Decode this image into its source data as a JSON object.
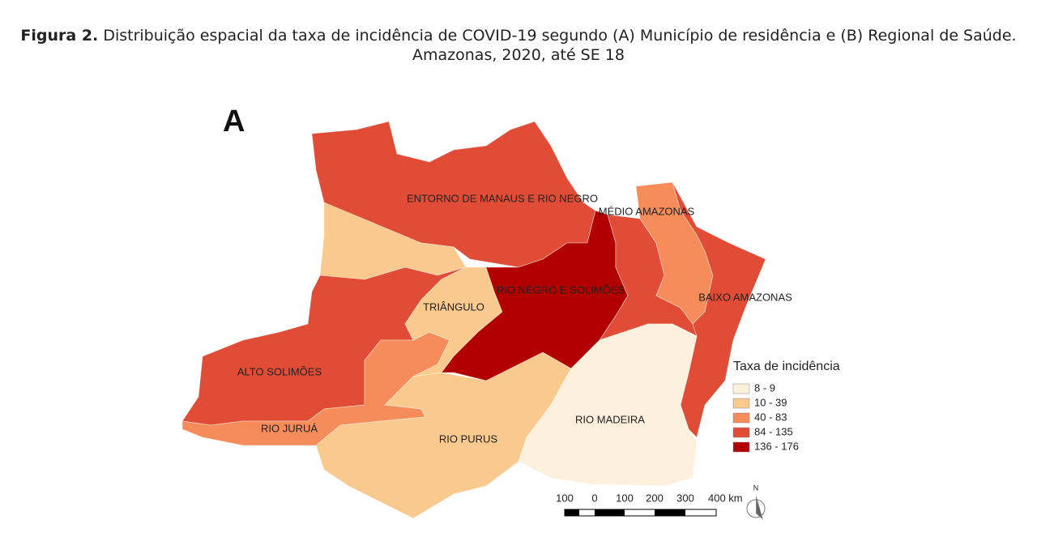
{
  "header": {
    "label": "Figura 2.",
    "text": "Distribuição espacial da taxa de incidência de COVID-19 segundo (A) Município de residência e (B) Regional de Saúde.",
    "line2": "Amazonas, 2020, até SE 18"
  },
  "map": {
    "panel": "A",
    "regions": [
      {
        "name": "ENTORNO DE MANAUS E RIO NEGRO",
        "color": "#e04c35"
      },
      {
        "name": "MÉDIO AMAZONAS",
        "color": "#f68c5a"
      },
      {
        "name": "RIO NEGRO E SOLIMÕES",
        "color": "#b20000"
      },
      {
        "name": "TRIÂNGULO",
        "color": "#fac98d"
      },
      {
        "name": "BAIXO AMAZONAS",
        "color": "#e04c35"
      },
      {
        "name": "ALTO SOLIMÕES",
        "color": "#e04c35"
      },
      {
        "name": "RIO JURUÁ",
        "color": "#f68c5a"
      },
      {
        "name": "RIO PURUS",
        "color": "#fac98d"
      },
      {
        "name": "RIO MADEIRA",
        "color": "#fdf0dc"
      }
    ],
    "legend": {
      "title": "Taxa de incidência",
      "items": [
        {
          "label": "8 - 9",
          "color": "#fdf0dc"
        },
        {
          "label": "10 - 39",
          "color": "#fac98d"
        },
        {
          "label": "40 - 83",
          "color": "#f68c5a"
        },
        {
          "label": "84 - 135",
          "color": "#e04c35"
        },
        {
          "label": "136 - 176",
          "color": "#b20000"
        }
      ]
    },
    "scalebar": [
      "100",
      "0",
      "100",
      "200",
      "300",
      "400 km"
    ],
    "north": "N"
  }
}
